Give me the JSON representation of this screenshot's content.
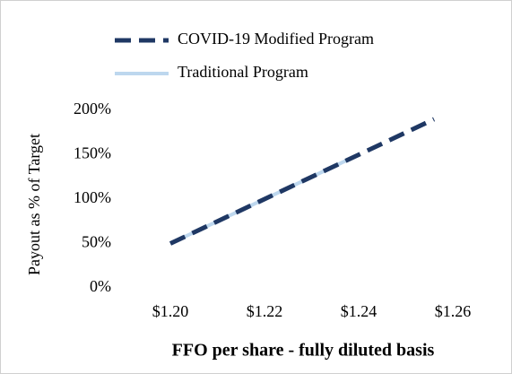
{
  "chart_data": {
    "type": "line",
    "xlabel": "FFO per share - fully diluted basis",
    "ylabel": "Payout as % of Target",
    "series": [
      {
        "name": "COVID-19 Modified Program",
        "color": "#1f3864",
        "dashed": true,
        "x": [
          1.2,
          1.256
        ],
        "values": [
          50,
          190
        ]
      },
      {
        "name": "Traditional Program",
        "color": "#bdd7ee",
        "dashed": false,
        "x": [
          1.2,
          1.24
        ],
        "values": [
          50,
          150
        ]
      }
    ],
    "xlim": [
      1.19,
      1.27
    ],
    "xticks": [
      {
        "value": 1.2,
        "label": "$1.20"
      },
      {
        "value": 1.22,
        "label": "$1.22"
      },
      {
        "value": 1.24,
        "label": "$1.24"
      },
      {
        "value": 1.26,
        "label": "$1.26"
      }
    ],
    "ylim": [
      0,
      200
    ],
    "yticks": [
      {
        "value": 0,
        "label": "0%"
      },
      {
        "value": 50,
        "label": "50%"
      },
      {
        "value": 100,
        "label": "100%"
      },
      {
        "value": 150,
        "label": "150%"
      },
      {
        "value": 200,
        "label": "200%"
      }
    ],
    "grid": false
  }
}
